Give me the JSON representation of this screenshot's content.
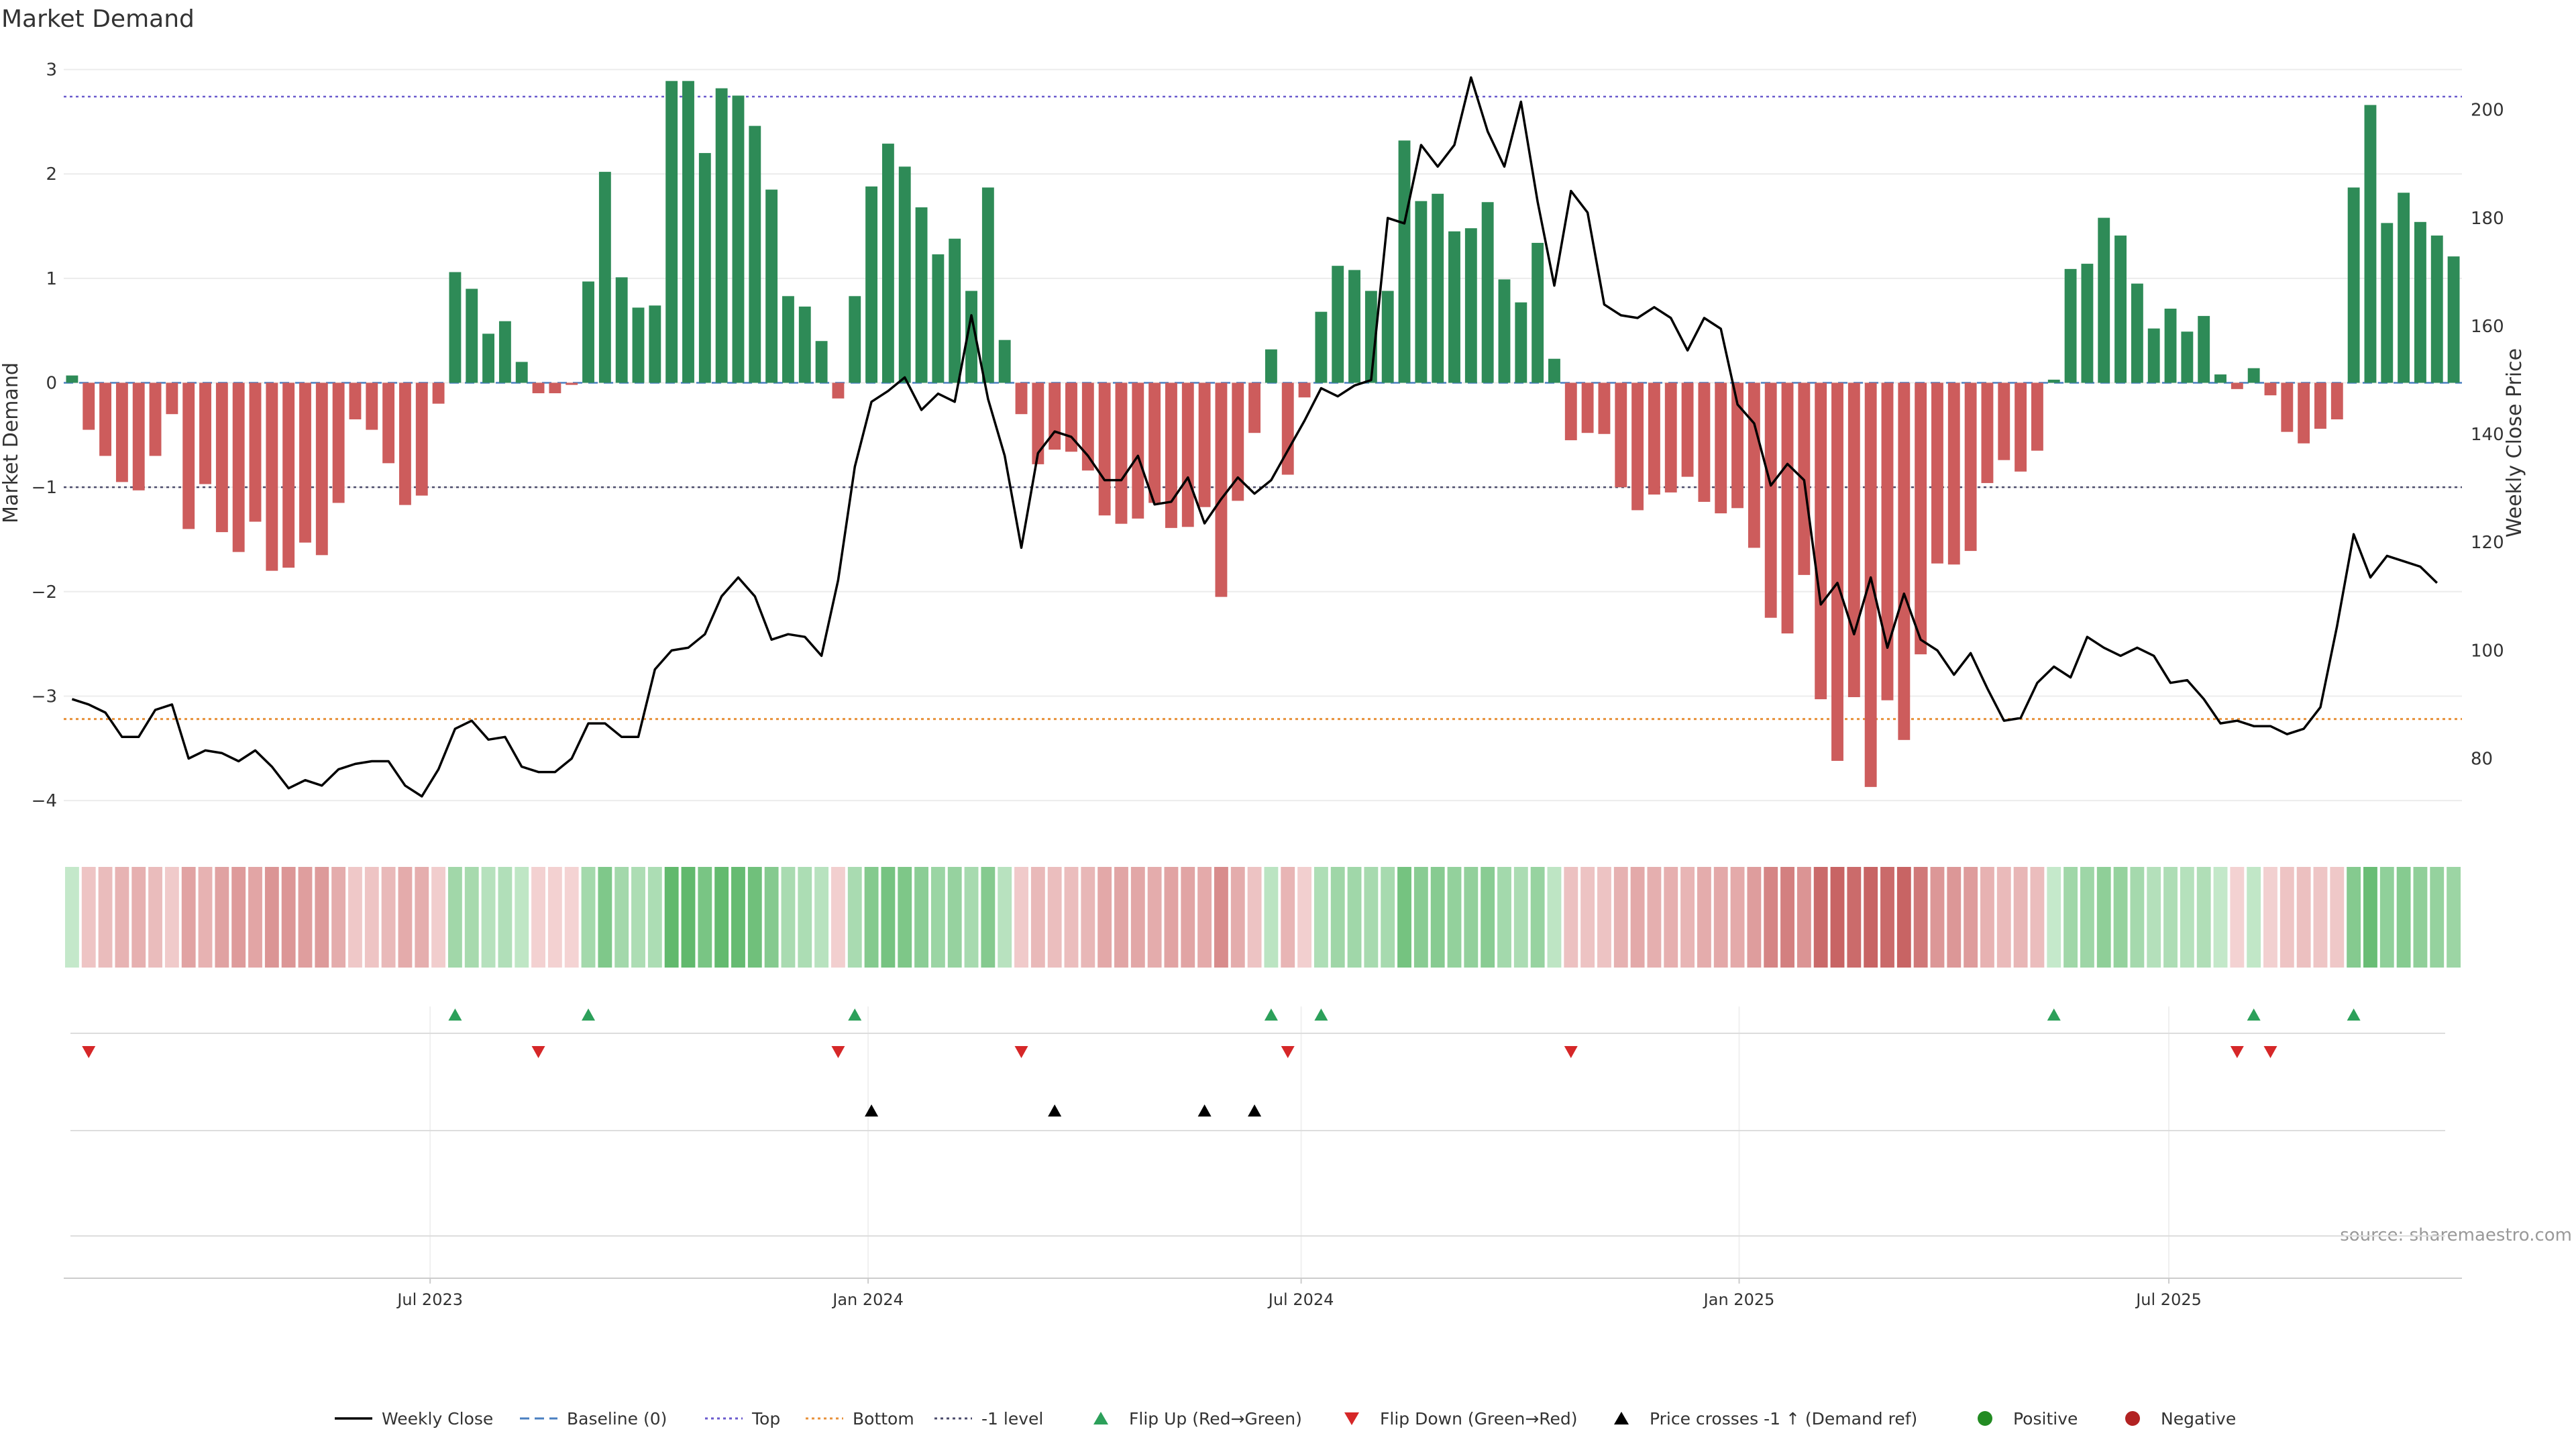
{
  "chart_data": {
    "type": "bar",
    "title": "Market Demand",
    "ylabel": "Market Demand",
    "y2label": "Weekly Close Price",
    "source": "source: sharemaestro.com",
    "ylim": [
      -4.25,
      3.1
    ],
    "y2lim": [
      67.4,
      209.4
    ],
    "yticks": [
      3,
      2,
      1,
      0,
      -1,
      -2,
      -3,
      -4
    ],
    "yticks_labels": [
      "3",
      "2",
      "1",
      "0",
      "−1",
      "−2",
      "−3",
      "−4"
    ],
    "y2ticks": [
      200,
      180,
      160,
      140,
      120,
      100,
      80
    ],
    "x_start_week": -22,
    "x_end_week": 122,
    "x_ticks": [
      {
        "week": 0,
        "label": "Jul 2023"
      },
      {
        "week": 26.3,
        "label": "Jan 2024"
      },
      {
        "week": 52.3,
        "label": "Jul 2024"
      },
      {
        "week": 78.6,
        "label": "Jan 2025"
      },
      {
        "week": 104.4,
        "label": "Jul 2025"
      }
    ],
    "reference_levels": {
      "top": 2.74,
      "bottom": -3.22,
      "minus_one": -1,
      "baseline": 0
    },
    "colors": {
      "positive": "#2e8b57",
      "negative": "#cd5c5c",
      "price": "#000000",
      "top_line": "#6a5acd",
      "bottom_line": "#e8913a",
      "minus_one_line": "#4b4b6b",
      "baseline": "#4a7fc1",
      "flip_up": "#2ca05a",
      "flip_down": "#d62728",
      "cross": "#000000",
      "legend_positive": "#228b22",
      "legend_negative": "#b22222"
    },
    "demand": [
      0.07,
      -0.45,
      -0.7,
      -0.95,
      -1.03,
      -0.7,
      -0.3,
      -1.4,
      -0.97,
      -1.43,
      -1.62,
      -1.33,
      -1.8,
      -1.77,
      -1.53,
      -1.65,
      -1.15,
      -0.35,
      -0.45,
      -0.77,
      -1.17,
      -1.08,
      -0.2,
      1.06,
      0.9,
      0.47,
      0.59,
      0.2,
      -0.1,
      -0.1,
      -0.02,
      0.97,
      2.02,
      1.01,
      0.72,
      0.74,
      2.89,
      2.89,
      2.2,
      2.82,
      2.75,
      2.46,
      1.85,
      0.83,
      0.73,
      0.4,
      -0.15,
      0.83,
      1.88,
      2.29,
      2.07,
      1.68,
      1.23,
      1.38,
      0.88,
      1.87,
      0.41,
      -0.3,
      -0.78,
      -0.64,
      -0.66,
      -0.84,
      -1.27,
      -1.35,
      -1.3,
      -1.15,
      -1.39,
      -1.38,
      -1.19,
      -2.05,
      -1.13,
      -0.48,
      0.32,
      -0.88,
      -0.14,
      0.68,
      1.12,
      1.08,
      0.88,
      0.88,
      2.32,
      1.74,
      1.81,
      1.45,
      1.48,
      1.73,
      0.99,
      0.77,
      1.34,
      0.23,
      -0.55,
      -0.48,
      -0.49,
      -1.0,
      -1.22,
      -1.07,
      -1.05,
      -0.9,
      -1.14,
      -1.25,
      -1.2,
      -1.58,
      -2.25,
      -2.4,
      -1.84,
      -3.03,
      -3.62,
      -3.01,
      -3.87,
      -3.04,
      -3.42,
      -2.6,
      -1.73,
      -1.74,
      -1.61,
      -0.96,
      -0.74,
      -0.85,
      -0.65,
      0.03,
      1.09,
      1.14,
      1.58,
      1.41,
      0.95,
      0.52,
      0.71,
      0.49,
      0.64,
      0.08,
      -0.06,
      0.14,
      -0.12,
      -0.47,
      -0.58,
      -0.44,
      -0.35,
      1.87,
      2.66,
      1.53,
      1.82,
      1.54,
      1.41,
      1.21
    ],
    "price": [
      91,
      90,
      88.5,
      84,
      84,
      89,
      90,
      80,
      81.5,
      81,
      79.5,
      81.5,
      78.5,
      74.5,
      76,
      75,
      78,
      79,
      79.5,
      79.5,
      75,
      73,
      78,
      85.5,
      87,
      83.5,
      84,
      78.5,
      77.5,
      77.5,
      80,
      86.5,
      86.5,
      84,
      84,
      96.5,
      100,
      100.5,
      103,
      110,
      113.5,
      110,
      102,
      103,
      102.5,
      99,
      113,
      134,
      146,
      148,
      150.5,
      144.5,
      147.5,
      146,
      162,
      146.5,
      136,
      119,
      136.5,
      140.5,
      139.5,
      136,
      131.5,
      131.5,
      136,
      127,
      127.5,
      132,
      123.5,
      128,
      132,
      129,
      131.5,
      137,
      142.5,
      148.5,
      147,
      149,
      150,
      180,
      179,
      193.5,
      189.5,
      193.5,
      206,
      196,
      189.5,
      201.5,
      183,
      167.5,
      185,
      181,
      164,
      162,
      161.5,
      163.5,
      161.5,
      155.5,
      161.5,
      159.5,
      145.5,
      142,
      130.5,
      134.5,
      131.5,
      108.5,
      112.5,
      103,
      113.5,
      100.5,
      110.5,
      102,
      100,
      95.5,
      99.5,
      93,
      87,
      87.5,
      94,
      97,
      95,
      102.5,
      100.5,
      99,
      100.5,
      99,
      94,
      94.5,
      91,
      86.5,
      87,
      86,
      86,
      84.5,
      85.5,
      89.5,
      104.5,
      121.5,
      113.5,
      117.5,
      116.5,
      115.5,
      112.5
    ],
    "heat_cells": [
      0.07,
      -0.45,
      -0.7,
      -0.95,
      -1.03,
      -0.7,
      -0.3,
      -1.4,
      -0.97,
      -1.43,
      -1.62,
      -1.33,
      -1.8,
      -1.77,
      -1.53,
      -1.65,
      -1.15,
      -0.35,
      -0.45,
      -0.77,
      -1.17,
      -1.08,
      -0.2,
      1.06,
      0.9,
      0.47,
      0.59,
      0.2,
      -0.1,
      -0.1,
      -0.02,
      0.97,
      2.02,
      1.01,
      0.72,
      0.74,
      2.89,
      2.89,
      2.2,
      2.82,
      2.75,
      2.46,
      1.85,
      0.83,
      0.73,
      0.4,
      -0.15,
      0.83,
      1.88,
      2.29,
      2.07,
      1.68,
      1.23,
      1.38,
      0.88,
      1.87,
      0.41,
      -0.3,
      -0.78,
      -0.64,
      -0.66,
      -0.84,
      -1.27,
      -1.35,
      -1.3,
      -1.15,
      -1.39,
      -1.38,
      -1.19,
      -2.05,
      -1.13,
      -0.48,
      0.32,
      -0.88,
      -0.14,
      0.68,
      1.12,
      1.08,
      0.88,
      0.88,
      2.32,
      1.74,
      1.81,
      1.45,
      1.48,
      1.73,
      0.99,
      0.77,
      1.34,
      0.23,
      -0.55,
      -0.48,
      -0.49,
      -1.0,
      -1.22,
      -1.07,
      -1.05,
      -0.9,
      -1.14,
      -1.25,
      -1.2,
      -1.58,
      -2.25,
      -2.4,
      -1.84,
      -3.03,
      -3.62,
      -3.01,
      -3.87,
      -3.04,
      -3.42,
      -2.6,
      -1.73,
      -1.74,
      -1.61,
      -0.96,
      -0.74,
      -0.85,
      -0.65,
      0.03,
      1.09,
      1.14,
      1.58,
      1.41,
      0.95,
      0.52,
      0.71,
      0.49,
      0.64,
      0.08,
      -0.06,
      0.14,
      -0.12,
      -0.47,
      -0.58,
      -0.44,
      -0.35,
      1.87,
      2.66,
      1.53,
      1.82,
      1.54,
      1.41,
      1.21
    ],
    "flip_up_indices": [
      23,
      31,
      47,
      72,
      75,
      119,
      131,
      137
    ],
    "flip_down_indices": [
      1,
      28,
      46,
      57,
      73,
      90,
      130,
      132
    ],
    "price_cross_indices": [
      48,
      59,
      68,
      71
    ],
    "legend": [
      {
        "key": "weekly_close",
        "label": "Weekly Close",
        "marker": "line"
      },
      {
        "key": "baseline",
        "label": "Baseline (0)",
        "marker": "dash"
      },
      {
        "key": "top",
        "label": "Top",
        "marker": "dot-top"
      },
      {
        "key": "bottom",
        "label": "Bottom",
        "marker": "dot-bottom"
      },
      {
        "key": "minus_one",
        "label": "-1 level",
        "marker": "dot-minus"
      },
      {
        "key": "flip_up",
        "label": "Flip Up (Red→Green)",
        "marker": "tri-up-green"
      },
      {
        "key": "flip_down",
        "label": "Flip Down (Green→Red)",
        "marker": "tri-down-red"
      },
      {
        "key": "price_cross",
        "label": "Price crosses -1 ↑ (Demand ref)",
        "marker": "tri-up-black"
      },
      {
        "key": "positive",
        "label": "Positive",
        "marker": "dot-green"
      },
      {
        "key": "negative",
        "label": "Negative",
        "marker": "dot-red"
      }
    ]
  }
}
